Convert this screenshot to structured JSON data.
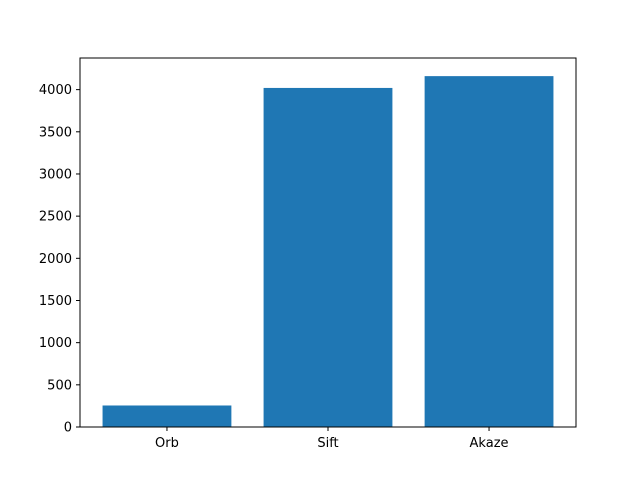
{
  "chart_data": {
    "type": "bar",
    "categories": [
      "Orb",
      "Sift",
      "Akaze"
    ],
    "values": [
      255,
      4020,
      4160
    ],
    "title": "",
    "xlabel": "",
    "ylabel": "",
    "ylim": [
      0,
      4375
    ],
    "yticks": [
      0,
      500,
      1000,
      1500,
      2000,
      2500,
      3000,
      3500,
      4000
    ],
    "grid": false,
    "legend": "none",
    "bar_color": "#1f77b4"
  }
}
